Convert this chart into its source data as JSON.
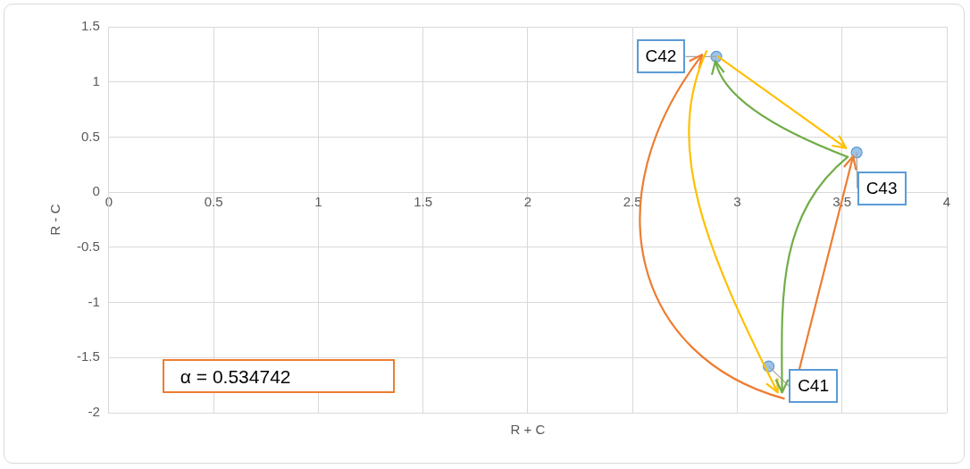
{
  "chart_data": {
    "type": "scatter",
    "xlabel": "R + C",
    "ylabel": "R - C",
    "x": [
      3.15,
      2.9,
      3.57
    ],
    "values": [
      -1.58,
      1.23,
      0.36
    ],
    "color": "#9dc3e6",
    "marker": "circle",
    "grid": true,
    "legend": false,
    "xlim": [
      0,
      4
    ],
    "xticks": [
      0,
      0.5,
      1,
      1.5,
      2,
      2.5,
      3,
      3.5,
      4
    ],
    "ylim": [
      -2,
      1.5
    ],
    "yticks": [
      -2,
      -1.5,
      -1,
      -0.5,
      0,
      0.5,
      1,
      1.5
    ],
    "annotations": [
      {
        "text": "C41",
        "x": 3.15,
        "y": -1.58
      },
      {
        "text": "C42",
        "x": 2.9,
        "y": 1.23
      },
      {
        "text": "C43",
        "x": 3.57,
        "y": 0.36
      },
      "α = 0.534742"
    ]
  }
}
